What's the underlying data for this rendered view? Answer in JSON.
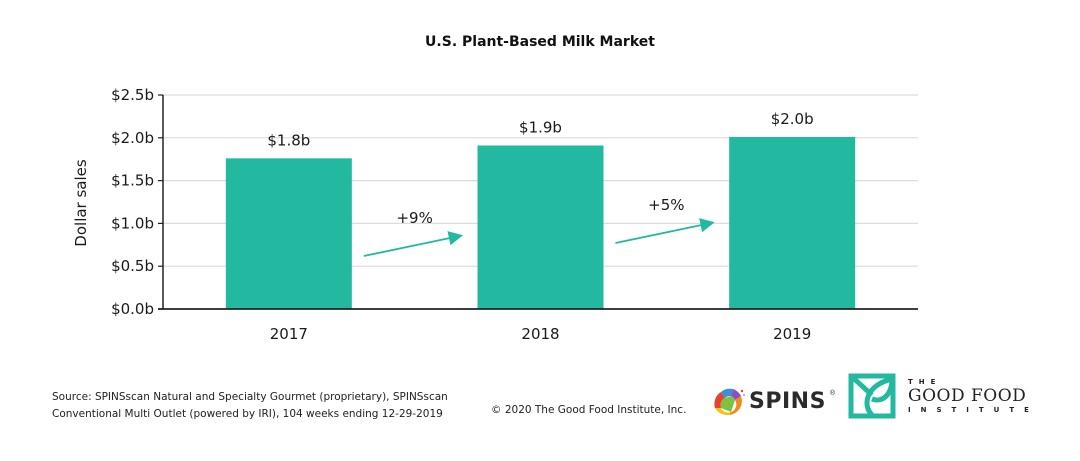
{
  "chart_data": {
    "type": "bar",
    "title": "U.S. Plant-Based Milk Market",
    "xlabel": "",
    "ylabel": "Dollar sales",
    "categories": [
      "2017",
      "2018",
      "2019"
    ],
    "values": [
      1.76,
      1.91,
      2.01
    ],
    "value_unit": "billion USD",
    "data_labels": [
      "$1.8b",
      "$1.9b",
      "$2.0b"
    ],
    "ylim": [
      0,
      2.5
    ],
    "yticks": [
      0,
      0.5,
      1.0,
      1.5,
      2.0,
      2.5
    ],
    "ytick_labels": [
      "$0.0b",
      "$0.5b",
      "$1.0b",
      "$1.5b",
      "$2.0b",
      "$2.5b"
    ],
    "grid": true,
    "legend": "none",
    "bar_color": "#22b9a0",
    "annotations": [
      {
        "text": "+9%",
        "from": "2017",
        "to": "2018",
        "type": "growth-arrow"
      },
      {
        "text": "+5%",
        "from": "2018",
        "to": "2019",
        "type": "growth-arrow"
      }
    ]
  },
  "footer": {
    "source_line1": "Source: SPINSscan Natural and Specialty Gourmet (proprietary), SPINSscan",
    "source_line2": "Conventional Multi Outlet (powered by IRI), 104 weeks ending 12-29-2019",
    "copyright": "© 2020 The Good Food Institute, Inc."
  },
  "logos": {
    "spins": {
      "text": "SPINS",
      "reg": "®"
    },
    "gfi": {
      "the": "THE",
      "main": "GOOD FOOD",
      "institute": "INSTITUTE",
      "color": "#22b9a0"
    }
  }
}
